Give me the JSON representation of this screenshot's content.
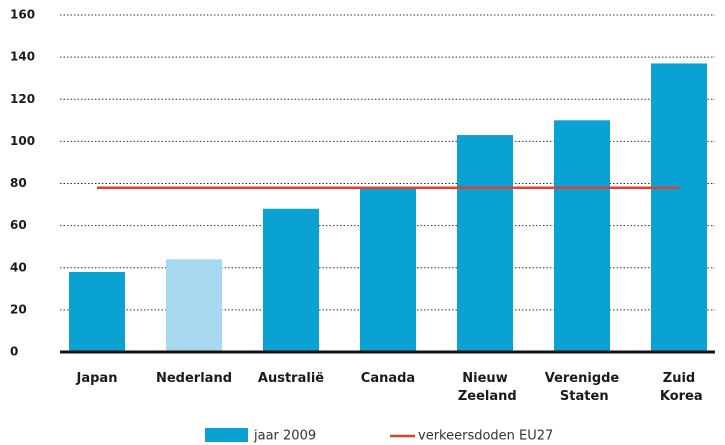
{
  "chart_data": {
    "type": "bar",
    "categories": [
      "Japan",
      "Nederland",
      "Australië",
      "Canada",
      "Nieuw Zeeland",
      "Verenigde Staten",
      "Zuid Korea"
    ],
    "series": [
      {
        "name": "jaar 2009",
        "color": "#0aa1d3",
        "colors": [
          "#0aa1d3",
          "#a6d8ef",
          "#0aa1d3",
          "#0aa1d3",
          "#0aa1d3",
          "#0aa1d3",
          "#0aa1d3"
        ],
        "values": [
          38,
          44,
          68,
          78,
          103,
          110,
          137
        ]
      }
    ],
    "reference_line": {
      "name": "verkeersdoden EU27",
      "value": 78,
      "color": "#e0402e"
    },
    "ylim": [
      0,
      160
    ],
    "yticks": [
      0,
      20,
      40,
      60,
      80,
      100,
      120,
      140,
      160
    ],
    "grid": true
  }
}
